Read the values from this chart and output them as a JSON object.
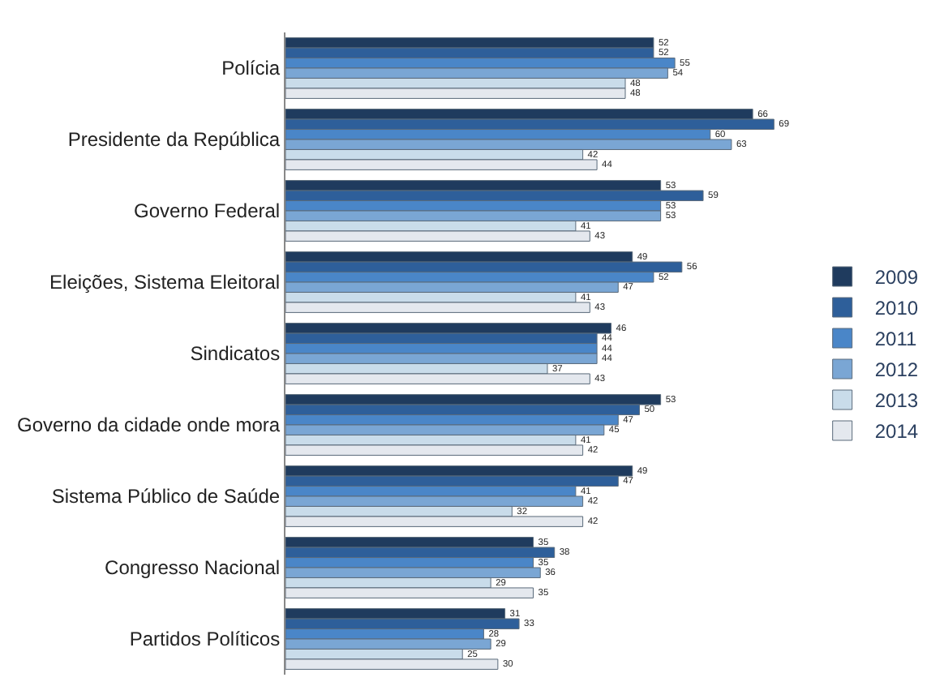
{
  "chart_data": {
    "type": "bar",
    "orientation": "horizontal",
    "data_labels": true,
    "legend": "right",
    "categories": [
      "Polícia",
      "Presidente da República",
      "Governo Federal",
      "Eleições, Sistema Eleitoral",
      "Sindicatos",
      "Governo da cidade onde mora",
      "Sistema Público de Saúde",
      "Congresso Nacional",
      "Partidos Políticos"
    ],
    "series": [
      {
        "name": "2009",
        "color": "#1f3b5e",
        "values": [
          52,
          66,
          53,
          49,
          46,
          53,
          49,
          35,
          31
        ]
      },
      {
        "name": "2010",
        "color": "#2e5f9a",
        "values": [
          52,
          69,
          59,
          56,
          44,
          50,
          47,
          38,
          33
        ]
      },
      {
        "name": "2011",
        "color": "#4a86c8",
        "values": [
          55,
          60,
          53,
          52,
          44,
          47,
          41,
          35,
          28
        ]
      },
      {
        "name": "2012",
        "color": "#7aa6d4",
        "values": [
          54,
          63,
          53,
          47,
          44,
          45,
          42,
          36,
          29
        ]
      },
      {
        "name": "2013",
        "color": "#c9dcea",
        "values": [
          48,
          42,
          41,
          41,
          37,
          41,
          32,
          29,
          25
        ]
      },
      {
        "name": "2014",
        "color": "#e4e8ee",
        "values": [
          48,
          44,
          43,
          43,
          43,
          42,
          42,
          35,
          30
        ]
      }
    ]
  }
}
